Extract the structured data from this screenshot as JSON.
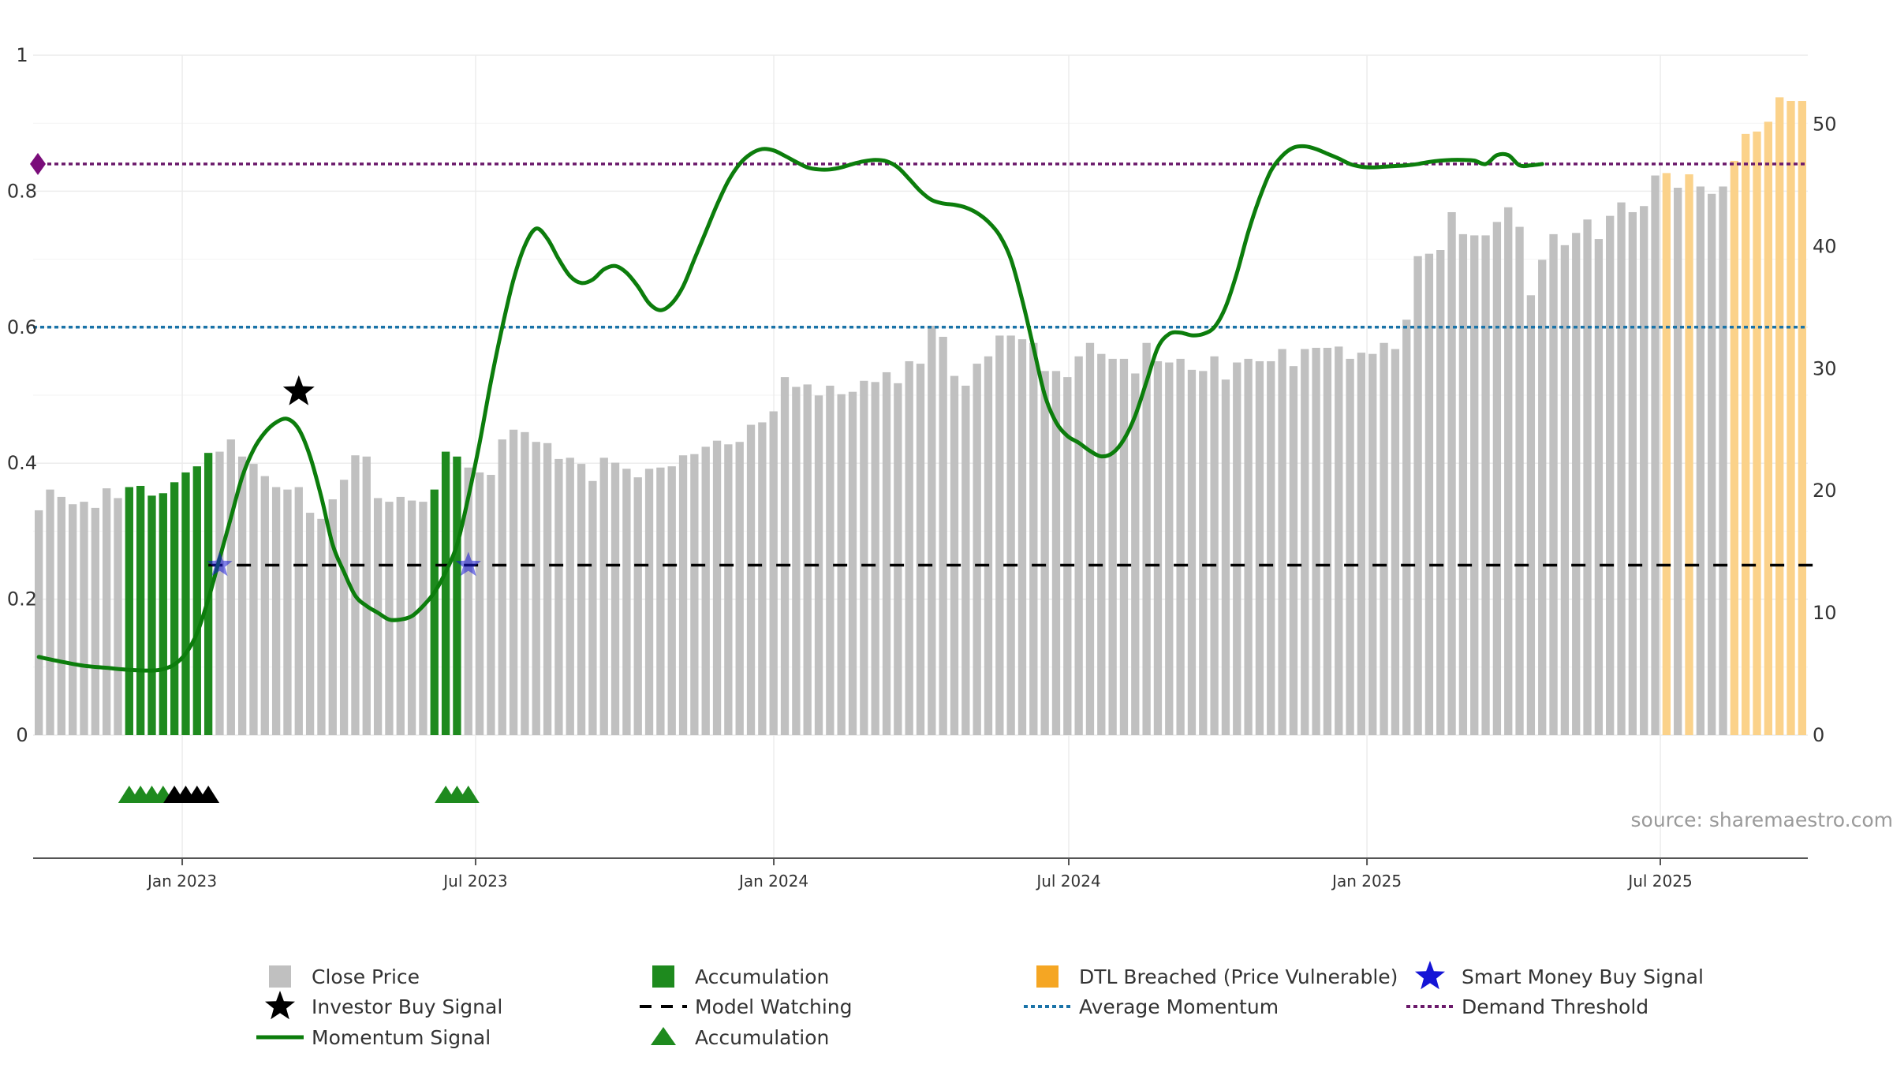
{
  "chart_data": {
    "type": "bar",
    "title": "",
    "xlabel": "",
    "ylabel": "",
    "source": "source: sharemaestro.com",
    "colors": {
      "close_price": "#c0c0c0",
      "accumulation": "#1e8a1e",
      "dtl_breached": "#fbd28a",
      "dtl_legend": "#f5a623",
      "momentum": "#0c7d0c",
      "smart_money": "#1515d6",
      "average_momentum": "#1a73a8",
      "demand_threshold": "#6b1a6b",
      "model_watching": "#000000"
    },
    "left_axis": {
      "min": 0,
      "max": 1,
      "ticks": [
        "0",
        "0.2",
        "0.4",
        "0.6",
        "0.8",
        "1"
      ]
    },
    "right_axis": {
      "min": 0,
      "max": 55,
      "ticks": [
        "0",
        "10",
        "20",
        "30",
        "40",
        "50"
      ]
    },
    "date_axis": {
      "start": "2022-10-01",
      "end": "2025-09-30",
      "ticks": [
        {
          "label": "Jan 2023",
          "date": "2023-01-01"
        },
        {
          "label": "Jul 2023",
          "date": "2023-07-01"
        },
        {
          "label": "Jan 2024",
          "date": "2024-01-01"
        },
        {
          "label": "Jul 2024",
          "date": "2024-07-01"
        },
        {
          "label": "Jan 2025",
          "date": "2025-01-01"
        },
        {
          "label": "Jul 2025",
          "date": "2025-07-01"
        }
      ]
    },
    "price_series": {
      "name": "Close Price (weekly)",
      "values": [
        18.4,
        20.1,
        19.5,
        18.9,
        19.1,
        18.6,
        20.2,
        19.4,
        20.3,
        20.4,
        19.6,
        19.8,
        20.7,
        21.5,
        22,
        23.1,
        23.2,
        24.2,
        22.8,
        22.2,
        21.2,
        20.3,
        20.1,
        20.3,
        18.2,
        17.7,
        19.3,
        20.9,
        22.9,
        22.8,
        19.4,
        19.1,
        19.5,
        19.2,
        19.1,
        20.1,
        23.2,
        22.8,
        21.9,
        21.5,
        21.3,
        24.2,
        25,
        24.8,
        24,
        23.9,
        22.6,
        22.7,
        22.2,
        20.8,
        22.7,
        22.3,
        21.8,
        21.1,
        21.8,
        21.9,
        22,
        22.9,
        23,
        23.6,
        24.1,
        23.8,
        24,
        25.4,
        25.6,
        26.5,
        29.3,
        28.5,
        28.7,
        27.8,
        28.6,
        27.9,
        28.1,
        29,
        28.9,
        29.7,
        28.8,
        30.6,
        30.4,
        33.5,
        32.6,
        29.4,
        28.6,
        30.4,
        31,
        32.7,
        32.7,
        32.4,
        32.1,
        29.8,
        29.8,
        29.3,
        31,
        32.1,
        31.2,
        30.8,
        30.8,
        29.6,
        32.1,
        30.6,
        30.5,
        30.8,
        29.9,
        29.8,
        31,
        29.1,
        30.5,
        30.8,
        30.6,
        30.6,
        31.6,
        30.2,
        31.6,
        31.7,
        31.7,
        31.8,
        30.8,
        31.3,
        31.2,
        32.1,
        31.6,
        34,
        39.2,
        39.4,
        39.7,
        42.8,
        41,
        40.9,
        40.9,
        42,
        43.2,
        41.6,
        36,
        38.9,
        41,
        40.1,
        41.1,
        42.2,
        40.6,
        42.5,
        43.6,
        42.8,
        43.3,
        45.8,
        46,
        44.8,
        45.9,
        44.9,
        44.3,
        44.9,
        47,
        49.2,
        49.4,
        50.2,
        52.2,
        51.9,
        51.9
      ],
      "categories": {
        "accumulation_ranges": [
          [
            8,
            15
          ],
          [
            35,
            37
          ]
        ],
        "dtl_ranges": [
          [
            144,
            144
          ],
          [
            146,
            146
          ],
          [
            150,
            157
          ]
        ]
      }
    },
    "momentum_series": {
      "name": "Momentum Signal",
      "points": [
        [
          0,
          0.115
        ],
        [
          2,
          0.108
        ],
        [
          4,
          0.102
        ],
        [
          6,
          0.099
        ],
        [
          8,
          0.096
        ],
        [
          10,
          0.095
        ],
        [
          11,
          0.097
        ],
        [
          12,
          0.104
        ],
        [
          13,
          0.12
        ],
        [
          14,
          0.15
        ],
        [
          15,
          0.2
        ],
        [
          16,
          0.26
        ],
        [
          17,
          0.32
        ],
        [
          18,
          0.38
        ],
        [
          19,
          0.42
        ],
        [
          20,
          0.445
        ],
        [
          21,
          0.46
        ],
        [
          22,
          0.465
        ],
        [
          23,
          0.45
        ],
        [
          24,
          0.41
        ],
        [
          25,
          0.35
        ],
        [
          26,
          0.28
        ],
        [
          27,
          0.24
        ],
        [
          28,
          0.205
        ],
        [
          29,
          0.19
        ],
        [
          30,
          0.18
        ],
        [
          31,
          0.17
        ],
        [
          32,
          0.17
        ],
        [
          33,
          0.175
        ],
        [
          34,
          0.19
        ],
        [
          35,
          0.21
        ],
        [
          36,
          0.24
        ],
        [
          37,
          0.28
        ],
        [
          38,
          0.35
        ],
        [
          39,
          0.43
        ],
        [
          40,
          0.52
        ],
        [
          41,
          0.6
        ],
        [
          42,
          0.67
        ],
        [
          43,
          0.72
        ],
        [
          44,
          0.745
        ],
        [
          45,
          0.73
        ],
        [
          46,
          0.7
        ],
        [
          47,
          0.675
        ],
        [
          48,
          0.665
        ],
        [
          49,
          0.67
        ],
        [
          50,
          0.685
        ],
        [
          51,
          0.69
        ],
        [
          52,
          0.68
        ],
        [
          53,
          0.66
        ],
        [
          54,
          0.635
        ],
        [
          55,
          0.625
        ],
        [
          56,
          0.635
        ],
        [
          57,
          0.66
        ],
        [
          58,
          0.7
        ],
        [
          59,
          0.74
        ],
        [
          60,
          0.78
        ],
        [
          61,
          0.815
        ],
        [
          62,
          0.84
        ],
        [
          63,
          0.855
        ],
        [
          64,
          0.862
        ],
        [
          65,
          0.86
        ],
        [
          66,
          0.852
        ],
        [
          67,
          0.843
        ],
        [
          68,
          0.835
        ],
        [
          69,
          0.832
        ],
        [
          70,
          0.832
        ],
        [
          71,
          0.835
        ],
        [
          72,
          0.84
        ],
        [
          73,
          0.844
        ],
        [
          74,
          0.846
        ],
        [
          75,
          0.844
        ],
        [
          76,
          0.835
        ],
        [
          77,
          0.818
        ],
        [
          78,
          0.8
        ],
        [
          79,
          0.787
        ],
        [
          80,
          0.782
        ],
        [
          81,
          0.78
        ],
        [
          82,
          0.776
        ],
        [
          83,
          0.768
        ],
        [
          84,
          0.755
        ],
        [
          85,
          0.735
        ],
        [
          86,
          0.7
        ],
        [
          87,
          0.64
        ],
        [
          88,
          0.57
        ],
        [
          89,
          0.5
        ],
        [
          90,
          0.46
        ],
        [
          91,
          0.44
        ],
        [
          92,
          0.43
        ],
        [
          93,
          0.418
        ],
        [
          94,
          0.41
        ],
        [
          95,
          0.415
        ],
        [
          96,
          0.435
        ],
        [
          97,
          0.47
        ],
        [
          98,
          0.52
        ],
        [
          99,
          0.57
        ],
        [
          100,
          0.59
        ],
        [
          101,
          0.592
        ],
        [
          102,
          0.588
        ],
        [
          103,
          0.59
        ],
        [
          104,
          0.6
        ],
        [
          105,
          0.63
        ],
        [
          106,
          0.68
        ],
        [
          107,
          0.74
        ],
        [
          108,
          0.79
        ],
        [
          109,
          0.83
        ],
        [
          110,
          0.852
        ],
        [
          111,
          0.864
        ],
        [
          112,
          0.866
        ],
        [
          113,
          0.862
        ],
        [
          114,
          0.855
        ],
        [
          115,
          0.848
        ],
        [
          116,
          0.84
        ],
        [
          117,
          0.836
        ],
        [
          118,
          0.835
        ],
        [
          119,
          0.836
        ],
        [
          120,
          0.837
        ],
        [
          121,
          0.838
        ],
        [
          122,
          0.84
        ],
        [
          123,
          0.843
        ],
        [
          124,
          0.845
        ],
        [
          125,
          0.846
        ],
        [
          126,
          0.846
        ],
        [
          127,
          0.845
        ],
        [
          128,
          0.84
        ],
        [
          129,
          0.853
        ],
        [
          130,
          0.853
        ],
        [
          131,
          0.838
        ],
        [
          132,
          0.838
        ],
        [
          133,
          0.84
        ]
      ]
    },
    "average_momentum": 0.6,
    "demand_threshold": 0.84,
    "model_watching_level": 0.25,
    "model_watching_range": [
      15,
      157
    ],
    "investor_buy_signal": {
      "week": 23,
      "value": 0.505
    },
    "smart_money_buy_signals": [
      {
        "week": 16,
        "value": 0.25
      },
      {
        "week": 38,
        "value": 0.25
      }
    ],
    "accumulation_markers": {
      "green": [
        8,
        9,
        10,
        11,
        36,
        37,
        38
      ],
      "black": [
        12,
        13,
        14,
        15
      ]
    },
    "legend": [
      {
        "id": "close",
        "label": "Close Price",
        "symbol": "square",
        "color": "#c0c0c0"
      },
      {
        "id": "accum-bar",
        "label": "Accumulation",
        "symbol": "square",
        "color": "#1e8a1e"
      },
      {
        "id": "dtl",
        "label": "DTL Breached (Price Vulnerable)",
        "symbol": "square",
        "color": "#f5a623"
      },
      {
        "id": "smart-money",
        "label": "Smart Money Buy Signal",
        "symbol": "star",
        "color": "#1515d6"
      },
      {
        "id": "investor",
        "label": "Investor Buy Signal",
        "symbol": "star",
        "color": "#000000"
      },
      {
        "id": "watching",
        "label": "Model Watching",
        "symbol": "dash",
        "color": "#000000"
      },
      {
        "id": "avg-momentum",
        "label": "Average Momentum",
        "symbol": "dot",
        "color": "#1a73a8"
      },
      {
        "id": "demand",
        "label": "Demand Threshold",
        "symbol": "dot",
        "color": "#6b1a6b"
      },
      {
        "id": "momentum",
        "label": "Momentum Signal",
        "symbol": "line",
        "color": "#0c7d0c"
      },
      {
        "id": "accum-tri",
        "label": "Accumulation",
        "symbol": "triangle",
        "color": "#1e8a1e"
      }
    ]
  }
}
